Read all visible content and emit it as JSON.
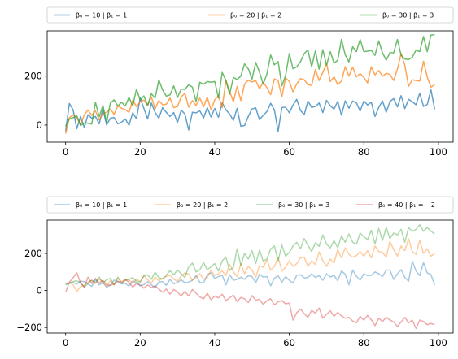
{
  "chart_data": [
    {
      "type": "line",
      "alpha": 0.7,
      "legend_placement": "top, above axes (3 columns)",
      "x": {
        "start": 0,
        "end": 99,
        "step": 1
      },
      "xlim": [
        -4.95,
        103.95
      ],
      "ylim": [
        -70,
        385
      ],
      "xticks": [
        0,
        20,
        40,
        60,
        80,
        100
      ],
      "yticks": [
        0,
        200
      ],
      "series": [
        {
          "name": "β₀ = 10 | β₁ = 1",
          "legend_label": "β₀ = 10  |  β₁ = 1",
          "color": "#1f77b4",
          "values": [
            -25,
            88,
            62,
            -15,
            35,
            -10,
            42,
            28,
            35,
            5,
            65,
            0,
            28,
            31,
            5,
            12,
            25,
            -1,
            50,
            26,
            110,
            68,
            25,
            90,
            52,
            28,
            71,
            52,
            35,
            51,
            10,
            61,
            45,
            -20,
            52,
            50,
            58,
            29,
            71,
            33,
            68,
            32,
            91,
            62,
            45,
            19,
            68,
            -5,
            -2,
            35,
            66,
            70,
            22,
            40,
            55,
            89,
            62,
            -26,
            71,
            73,
            50,
            82,
            105,
            60,
            42,
            98,
            72,
            76,
            90,
            51,
            101,
            79,
            65,
            97,
            40,
            99,
            69,
            98,
            91,
            57,
            98,
            82,
            93,
            35,
            72,
            99,
            52,
            96,
            108,
            74,
            120,
            67,
            105,
            95,
            83,
            130,
            76,
            84,
            144,
            65
          ]
        },
        {
          "name": "β₀ = 20 | β₁ = 2",
          "legend_label": "β₀ = 20  |  β₁ = 2",
          "color": "#ff7f0e",
          "values": [
            -35,
            30,
            41,
            29,
            1,
            41,
            62,
            39,
            58,
            21,
            47,
            52,
            65,
            44,
            78,
            69,
            63,
            52,
            102,
            75,
            95,
            102,
            80,
            115,
            66,
            100,
            83,
            85,
            110,
            71,
            76,
            115,
            130,
            73,
            100,
            80,
            110,
            75,
            113,
            62,
            103,
            120,
            71,
            182,
            137,
            95,
            158,
            100,
            168,
            183,
            176,
            182,
            148,
            175,
            153,
            124,
            189,
            181,
            115,
            192,
            179,
            136,
            168,
            190,
            185,
            165,
            162,
            227,
            182,
            215,
            252,
            178,
            197,
            165,
            180,
            238,
            200,
            237,
            197,
            210,
            195,
            172,
            238,
            205,
            223,
            199,
            211,
            207,
            182,
            228,
            293,
            244,
            158,
            185,
            182,
            180,
            261,
            197,
            155,
            165
          ]
        },
        {
          "name": "β₀ = 30 | β₁ = 3",
          "legend_label": "β₀ = 30  |  β₁ = 3",
          "color": "#2ca02c",
          "values": [
            -5,
            25,
            30,
            38,
            -2,
            8,
            8,
            4,
            93,
            34,
            80,
            10,
            90,
            103,
            78,
            93,
            78,
            113,
            78,
            147,
            102,
            119,
            80,
            128,
            110,
            185,
            144,
            118,
            123,
            160,
            112,
            147,
            145,
            165,
            155,
            95,
            175,
            167,
            178,
            175,
            178,
            110,
            215,
            182,
            126,
            195,
            186,
            200,
            250,
            230,
            188,
            256,
            216,
            167,
            209,
            286,
            246,
            260,
            160,
            202,
            292,
            230,
            238,
            259,
            292,
            307,
            238,
            303,
            228,
            308,
            245,
            300,
            253,
            265,
            350,
            287,
            258,
            320,
            300,
            350,
            300,
            302,
            305,
            285,
            344,
            295,
            265,
            296,
            295,
            350,
            285,
            270,
            268,
            278,
            306,
            300,
            362,
            300,
            368,
            370
          ]
        }
      ]
    },
    {
      "type": "line",
      "alpha": 0.4,
      "legend_placement": "top, above axes (4 columns)",
      "x": {
        "start": 0,
        "end": 99,
        "step": 1
      },
      "xlim": [
        -4.95,
        103.95
      ],
      "ylim": [
        -230,
        380
      ],
      "xticks": [
        0,
        20,
        40,
        60,
        80,
        100
      ],
      "yticks": [
        -200,
        0,
        200
      ],
      "series": [
        {
          "name": "β₀ = 10 | β₁ = 1",
          "legend_label": "β₀ = 10  |  β₁ = 1",
          "color": "#1f77b4",
          "values": [
            37,
            40,
            42,
            35,
            50,
            48,
            35,
            22,
            58,
            30,
            42,
            18,
            28,
            56,
            48,
            35,
            38,
            24,
            51,
            42,
            25,
            32,
            47,
            30,
            16,
            45,
            48,
            28,
            60,
            36,
            44,
            58,
            41,
            45,
            55,
            80,
            44,
            40,
            85,
            95,
            65,
            75,
            82,
            30,
            85,
            55,
            60,
            72,
            60,
            80,
            75,
            42,
            88,
            72,
            75,
            25,
            66,
            80,
            45,
            75,
            55,
            40,
            82,
            85,
            68,
            70,
            90,
            70,
            80,
            55,
            90,
            72,
            82,
            52,
            105,
            88,
            30,
            110,
            78,
            55,
            90,
            80,
            82,
            100,
            90,
            75,
            110,
            110,
            60,
            90,
            112,
            70,
            50,
            158,
            105,
            80,
            150,
            95,
            85,
            30
          ]
        },
        {
          "name": "β₀ = 20 | β₁ = 2",
          "legend_label": "β₀ = 20  |  β₁ = 2",
          "color": "#ff7f0e",
          "values": [
            35,
            42,
            30,
            -5,
            20,
            28,
            45,
            55,
            38,
            62,
            45,
            20,
            55,
            30,
            65,
            48,
            58,
            55,
            40,
            62,
            48,
            80,
            58,
            40,
            72,
            52,
            65,
            75,
            82,
            60,
            50,
            78,
            95,
            88,
            55,
            72,
            90,
            60,
            70,
            110,
            80,
            90,
            105,
            80,
            140,
            100,
            75,
            145,
            90,
            130,
            112,
            70,
            135,
            125,
            165,
            110,
            130,
            180,
            105,
            125,
            160,
            130,
            145,
            175,
            180,
            130,
            160,
            140,
            208,
            160,
            130,
            170,
            148,
            220,
            175,
            230,
            195,
            180,
            188,
            210,
            185,
            215,
            175,
            240,
            210,
            205,
            180,
            265,
            220,
            185,
            240,
            215,
            280,
            210,
            195,
            270,
            200,
            225,
            185,
            200
          ]
        },
        {
          "name": "β₀ = 30 | β₁ = 3",
          "legend_label": "β₀ = 30  |  β₁ = 3",
          "color": "#2ca02c",
          "values": [
            30,
            40,
            48,
            52,
            42,
            18,
            38,
            55,
            42,
            72,
            40,
            58,
            65,
            30,
            72,
            40,
            55,
            60,
            70,
            50,
            45,
            78,
            85,
            60,
            98,
            70,
            62,
            82,
            108,
            85,
            110,
            90,
            70,
            128,
            148,
            100,
            112,
            150,
            112,
            128,
            145,
            105,
            160,
            180,
            108,
            125,
            225,
            135,
            200,
            170,
            215,
            145,
            218,
            158,
            170,
            225,
            240,
            160,
            245,
            185,
            205,
            240,
            260,
            225,
            280,
            245,
            210,
            258,
            238,
            300,
            250,
            230,
            270,
            230,
            295,
            260,
            305,
            260,
            250,
            310,
            290,
            275,
            325,
            250,
            335,
            270,
            340,
            280,
            310,
            300,
            330,
            260,
            340,
            320,
            330,
            355,
            320,
            340,
            320,
            305
          ]
        },
        {
          "name": "β₀ = 40 | β₁ = −2",
          "legend_label": "β₀ = 40  |  β₁ = −2",
          "color": "#d62728",
          "values": [
            -10,
            45,
            68,
            95,
            40,
            18,
            72,
            38,
            65,
            40,
            55,
            32,
            28,
            35,
            50,
            40,
            58,
            44,
            18,
            38,
            30,
            12,
            30,
            15,
            25,
            8,
            -10,
            8,
            -20,
            5,
            -8,
            -30,
            -5,
            -30,
            5,
            -15,
            -35,
            -45,
            -15,
            -50,
            -30,
            -40,
            -20,
            -55,
            -40,
            -25,
            -60,
            -38,
            -45,
            -65,
            -28,
            -52,
            -48,
            -75,
            -55,
            -45,
            -78,
            -62,
            -55,
            -72,
            -68,
            -160,
            -120,
            -100,
            -125,
            -145,
            -108,
            -122,
            -95,
            -150,
            -128,
            -110,
            -140,
            -118,
            -138,
            -150,
            -145,
            -165,
            -175,
            -140,
            -160,
            -135,
            -158,
            -190,
            -150,
            -168,
            -145,
            -160,
            -170,
            -195,
            -170,
            -145,
            -175,
            -160,
            -205,
            -160,
            -168,
            -185,
            -178,
            -185
          ]
        }
      ]
    }
  ]
}
